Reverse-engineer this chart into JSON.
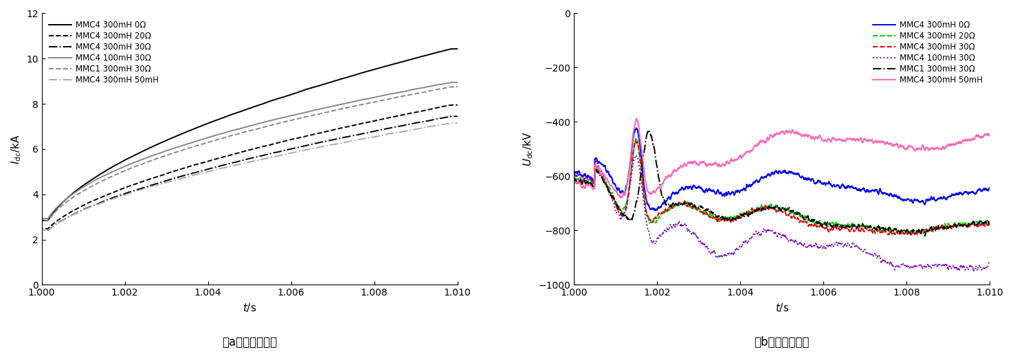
{
  "xlim": [
    1.0,
    1.01
  ],
  "left_ylim": [
    0,
    12
  ],
  "right_ylim": [
    -1000,
    0
  ],
  "left_yticks": [
    0,
    2,
    4,
    6,
    8,
    10,
    12
  ],
  "right_yticks": [
    -1000,
    -800,
    -600,
    -400,
    -200,
    0
  ],
  "xticks": [
    1.0,
    1.002,
    1.004,
    1.006,
    1.008,
    1.01
  ],
  "xlabel": "$t$/s",
  "left_ylabel": "$I_{\\mathrm{dc}}$/kA",
  "right_ylabel": "$U_{\\mathrm{dc}}$/kV",
  "left_caption": "（a）故障极电流",
  "right_caption": "（b）健全极电压",
  "left_legend": [
    {
      "label": "MMC4 300mH 0Ω",
      "color": "#000000",
      "ls": "-",
      "lw": 1.4
    },
    {
      "label": "MMC4 300mH 20Ω",
      "color": "#000000",
      "ls": "--",
      "lw": 1.4
    },
    {
      "label": "MMC4 300mH 30Ω",
      "color": "#000000",
      "ls": "-.",
      "lw": 1.4
    },
    {
      "label": "MMC4 100mH 30Ω",
      "color": "#888888",
      "ls": "-",
      "lw": 1.4
    },
    {
      "label": "MMC1 300mH 30Ω",
      "color": "#888888",
      "ls": "--",
      "lw": 1.4
    },
    {
      "label": "MMC4 300mH 50mH",
      "color": "#aaaaaa",
      "ls": "-.",
      "lw": 1.4
    }
  ],
  "right_legend": [
    {
      "label": "MMC4 300mH 0Ω",
      "color": "#0000EE",
      "ls": "-",
      "lw": 1.4
    },
    {
      "label": "MMC4 300mH 20Ω",
      "color": "#00CC00",
      "ls": "--",
      "lw": 1.4
    },
    {
      "label": "MMC4 300mH 30Ω",
      "color": "#DD0000",
      "ls": "--",
      "lw": 1.4
    },
    {
      "label": "MMC4 100mH 30Ω",
      "color": "#7700BB",
      "ls": ":",
      "lw": 1.4
    },
    {
      "label": "MMC1 300mH 30Ω",
      "color": "#000000",
      "ls": "-.",
      "lw": 1.4
    },
    {
      "label": "MMC4 300mH 50mH",
      "color": "#FF66BB",
      "ls": "-",
      "lw": 1.4
    }
  ]
}
